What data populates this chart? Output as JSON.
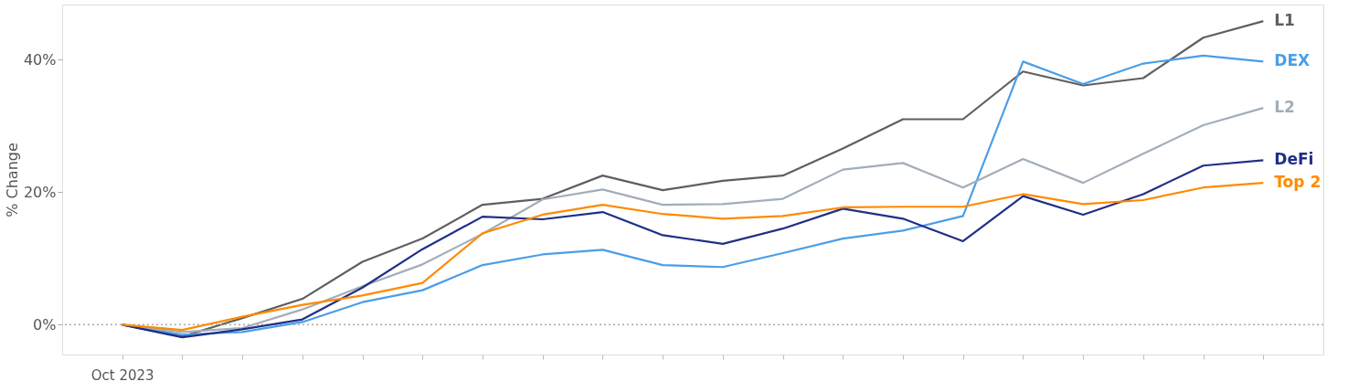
{
  "chart_data": {
    "type": "line",
    "ylabel": "% Change",
    "categories": [
      "Oct 2023",
      null,
      null,
      null,
      null,
      null,
      null,
      null,
      null,
      null,
      null,
      null,
      null,
      null,
      null,
      null,
      null,
      null,
      null,
      null
    ],
    "series": [
      {
        "name": "L1",
        "color": "#5f5f5f",
        "values": [
          0,
          -1.8,
          1.0,
          3.9,
          9.5,
          13.0,
          18.1,
          19.0,
          22.5,
          20.3,
          21.7,
          22.5,
          26.6,
          31.0,
          31.0,
          38.2,
          36.1,
          37.2,
          43.3,
          45.8
        ]
      },
      {
        "name": "DEX",
        "color": "#4a9ee8",
        "values": [
          0,
          -1.5,
          -1.1,
          0.4,
          3.4,
          5.2,
          9.0,
          10.6,
          11.3,
          9.0,
          8.7,
          10.8,
          13.0,
          14.2,
          16.4,
          39.7,
          36.3,
          39.4,
          40.6,
          39.7
        ]
      },
      {
        "name": "L2",
        "color": "#a3adb8",
        "values": [
          0,
          -1.1,
          -0.5,
          2.3,
          5.8,
          9.1,
          13.7,
          18.9,
          20.4,
          18.1,
          18.2,
          19.0,
          23.4,
          24.4,
          20.7,
          25.0,
          21.4,
          25.8,
          30.1,
          32.7
        ]
      },
      {
        "name": "DeFi",
        "color": "#1f2f86",
        "values": [
          0,
          -1.9,
          -0.7,
          0.8,
          5.6,
          11.4,
          16.3,
          15.9,
          17.0,
          13.5,
          12.2,
          14.5,
          17.5,
          16.0,
          12.6,
          19.4,
          16.6,
          19.7,
          24.0,
          24.8
        ]
      },
      {
        "name": "Top 2",
        "color": "#ff8a00",
        "values": [
          0,
          -0.8,
          1.2,
          3.0,
          4.4,
          6.3,
          13.8,
          16.6,
          18.1,
          16.7,
          16.0,
          16.4,
          17.7,
          17.8,
          17.8,
          19.7,
          18.2,
          18.8,
          20.7,
          21.4
        ]
      }
    ],
    "ylim": [
      -4.5,
      48.3
    ],
    "yticks": [
      {
        "value": 0,
        "label": "0%"
      },
      {
        "value": 20,
        "label": "20%"
      },
      {
        "value": 40,
        "label": "40%"
      }
    ],
    "ref_lines": [
      {
        "axis": "y",
        "value": 0,
        "color": "#aaaaaa",
        "line_style": "dotted"
      }
    ],
    "legend": false,
    "marker": "none",
    "line_style": "solid"
  }
}
